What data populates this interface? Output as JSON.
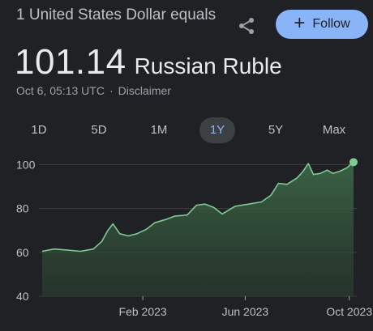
{
  "header": {
    "subtitle": "1 United States Dollar equals",
    "price": "101.14",
    "currency": "Russian Ruble",
    "timestamp": "Oct 6, 05:13 UTC",
    "separator": "·",
    "disclaimer": "Disclaimer",
    "share_icon": "share-icon",
    "follow_label": "Follow",
    "follow_icon": "+"
  },
  "ranges": [
    {
      "label": "1D",
      "active": false
    },
    {
      "label": "5D",
      "active": false
    },
    {
      "label": "1M",
      "active": false
    },
    {
      "label": "1Y",
      "active": true
    },
    {
      "label": "5Y",
      "active": false
    },
    {
      "label": "Max",
      "active": false
    }
  ],
  "colors": {
    "background": "#202124",
    "accent": "#8ab4f8",
    "line": "#81c995",
    "fill": "#2e4a36",
    "grid": "#3c4043",
    "text_muted": "#9aa0a6"
  },
  "chart_data": {
    "type": "area",
    "title": "",
    "xlabel": "",
    "ylabel": "",
    "ylim": [
      40,
      102
    ],
    "yticks": [
      40,
      60,
      80,
      100
    ],
    "xticks": [
      "Feb 2023",
      "Jun 2023",
      "Oct 2023"
    ],
    "x_range": [
      "2022-10-06",
      "2023-10-06"
    ],
    "grid": true,
    "series": [
      {
        "name": "USD/RUB",
        "x": [
          "2022-10-06",
          "2022-10-20",
          "2022-11-05",
          "2022-11-20",
          "2022-12-05",
          "2022-12-15",
          "2022-12-22",
          "2022-12-28",
          "2023-01-05",
          "2023-01-15",
          "2023-01-25",
          "2023-02-05",
          "2023-02-15",
          "2023-02-28",
          "2023-03-10",
          "2023-03-25",
          "2023-04-05",
          "2023-04-15",
          "2023-04-25",
          "2023-05-05",
          "2023-05-20",
          "2023-06-05",
          "2023-06-20",
          "2023-07-01",
          "2023-07-10",
          "2023-07-20",
          "2023-08-01",
          "2023-08-08",
          "2023-08-14",
          "2023-08-20",
          "2023-08-28",
          "2023-09-05",
          "2023-09-12",
          "2023-09-20",
          "2023-09-28",
          "2023-10-06"
        ],
        "values": [
          60.5,
          61.5,
          61.0,
          60.5,
          61.5,
          65.0,
          70.0,
          73.0,
          68.5,
          67.5,
          68.5,
          70.5,
          73.5,
          75.0,
          76.5,
          77.0,
          81.5,
          82.0,
          80.5,
          77.5,
          81.0,
          82.0,
          83.0,
          86.0,
          91.5,
          91.0,
          94.0,
          97.0,
          100.5,
          95.5,
          96.0,
          97.5,
          96.0,
          97.0,
          98.5,
          101.14
        ]
      }
    ]
  }
}
